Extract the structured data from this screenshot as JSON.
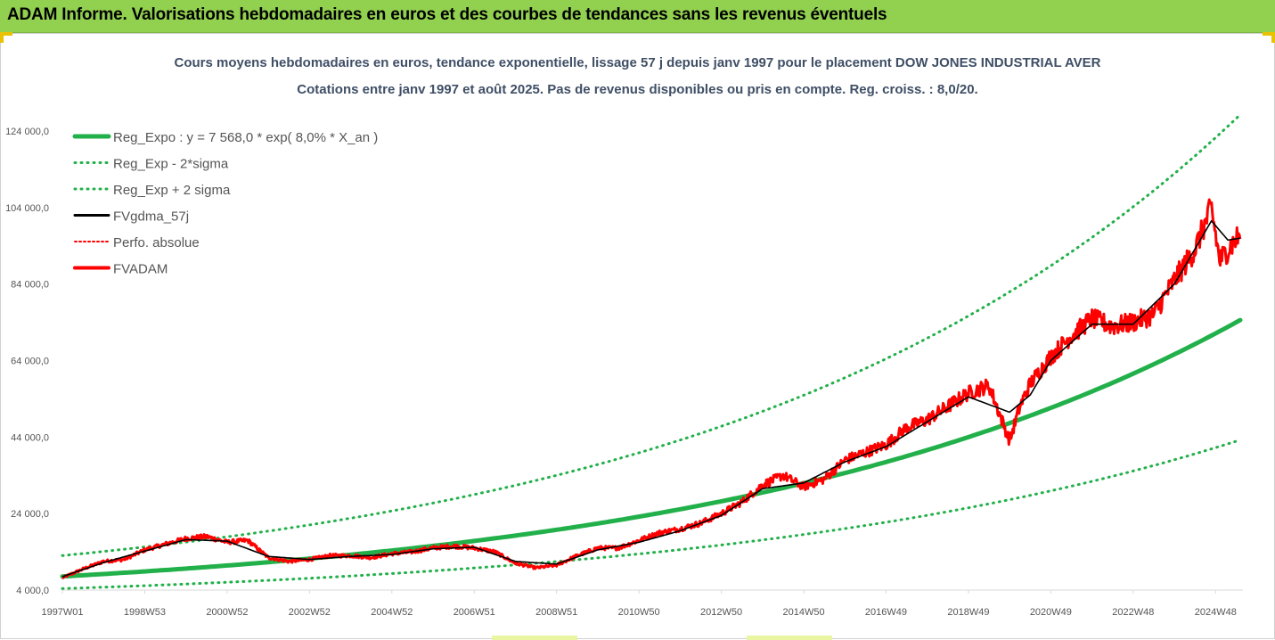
{
  "banner": {
    "title": "ADAM Informe. Valorisations hebdomadaires en euros et des courbes de tendances sans les revenus éventuels"
  },
  "colors": {
    "banner": "#92d050",
    "reg_expo": "#22b04a",
    "sigma": "#22b04a",
    "fvgdma": "#000000",
    "perfo": "#ff0000",
    "fvadam": "#ff0000"
  },
  "chart_data": {
    "type": "line",
    "title": "Cours moyens hebdomadaires en euros, tendance exponentielle, lissage 57 j depuis janv 1997 pour le placement DOW JONES INDUSTRIAL AVER",
    "subtitle": "Cotations entre janv 1997 et août 2025. Pas de revenus disponibles ou pris en compte. Reg. croiss. : 8,0/20.",
    "x_range": [
      1997.0,
      2025.6
    ],
    "ylim": [
      4000,
      124000
    ],
    "y_ticks": [
      "4 000,0",
      "24 000,0",
      "44 000,0",
      "64 000,0",
      "84 000,0",
      "104 000,0",
      "124 000,0"
    ],
    "y_tick_values": [
      4000,
      24000,
      44000,
      64000,
      84000,
      104000,
      124000
    ],
    "x_ticks": [
      "1997W01",
      "1998W53",
      "2000W52",
      "2002W52",
      "2004W52",
      "2006W51",
      "2008W51",
      "2010W50",
      "2012W50",
      "2014W50",
      "2016W49",
      "2018W49",
      "2020W49",
      "2022W48",
      "2024W48"
    ],
    "x_tick_values": [
      1997.0,
      1999.0,
      2001.0,
      2003.0,
      2005.0,
      2007.0,
      2009.0,
      2011.0,
      2013.0,
      2015.0,
      2017.0,
      2019.0,
      2021.0,
      2023.0,
      2025.0
    ],
    "grid": false,
    "legend_position": "top-left",
    "series": [
      {
        "name": "Reg_Expo : y = 7 568,0 * exp( 8,0% *  X_an )",
        "style": "solid-thick",
        "model": {
          "a": 7568,
          "b": 0.08,
          "k": 1.0
        }
      },
      {
        "name": "Reg_Exp - 2*sigma",
        "style": "dotted",
        "model": {
          "a": 7568,
          "b": 0.08,
          "k": 0.58
        }
      },
      {
        "name": "Reg_Exp + 2 sigma",
        "style": "dotted",
        "model": {
          "a": 7568,
          "b": 0.08,
          "k": 1.72
        }
      },
      {
        "name": "FVgdma_57j",
        "style": "solid"
      },
      {
        "name": "Perfo. absolue",
        "style": "dotted"
      },
      {
        "name": "FVADAM",
        "style": "solid-thick"
      }
    ],
    "fvadam": {
      "x": [
        1997.0,
        1997.5,
        1998.0,
        1998.5,
        1999.0,
        1999.5,
        2000.0,
        2000.5,
        2001.0,
        2001.5,
        2002.0,
        2002.5,
        2003.0,
        2003.5,
        2004.0,
        2004.5,
        2005.0,
        2005.5,
        2006.0,
        2006.5,
        2007.0,
        2007.5,
        2008.0,
        2008.5,
        2009.0,
        2009.5,
        2010.0,
        2010.5,
        2011.0,
        2011.5,
        2012.0,
        2012.5,
        2013.0,
        2013.5,
        2014.0,
        2014.5,
        2015.0,
        2015.5,
        2016.0,
        2016.5,
        2017.0,
        2017.5,
        2018.0,
        2018.5,
        2019.0,
        2019.5,
        2020.0,
        2020.25,
        2020.5,
        2021.0,
        2021.5,
        2022.0,
        2022.5,
        2023.0,
        2023.5,
        2024.0,
        2024.5,
        2024.9,
        2025.1,
        2025.3,
        2025.6
      ],
      "y": [
        7200,
        9500,
        11500,
        12000,
        14500,
        16000,
        17500,
        18000,
        16500,
        17000,
        12500,
        11500,
        12000,
        13000,
        13000,
        12500,
        13500,
        14000,
        15000,
        15500,
        15000,
        14000,
        11000,
        9800,
        10500,
        13000,
        15000,
        15000,
        17000,
        19000,
        20000,
        21500,
        24000,
        27000,
        31500,
        34000,
        31000,
        33000,
        38000,
        40000,
        42000,
        46500,
        48500,
        52000,
        55500,
        57500,
        43000,
        52000,
        58000,
        65000,
        70500,
        75000,
        73000,
        74000,
        76000,
        85000,
        93000,
        104000,
        90000,
        93000,
        97000
      ]
    },
    "fvgdma_57j": {
      "x": [
        1997.0,
        1998.0,
        1999.0,
        2000.0,
        2001.0,
        2002.0,
        2003.0,
        2004.0,
        2005.0,
        2006.0,
        2007.0,
        2008.0,
        2009.0,
        2010.0,
        2011.0,
        2012.0,
        2013.0,
        2014.0,
        2015.0,
        2016.0,
        2017.0,
        2018.0,
        2019.0,
        2020.0,
        2020.5,
        2021.0,
        2022.0,
        2023.0,
        2024.0,
        2024.9,
        2025.3,
        2025.6
      ],
      "y": [
        7500,
        11200,
        14200,
        17200,
        16800,
        12800,
        12000,
        12800,
        13300,
        14800,
        15200,
        11500,
        10800,
        14500,
        16500,
        19500,
        23500,
        30500,
        32000,
        37500,
        41500,
        48000,
        54500,
        50500,
        55000,
        64000,
        73500,
        73500,
        84000,
        100500,
        95500,
        96000
      ]
    }
  }
}
